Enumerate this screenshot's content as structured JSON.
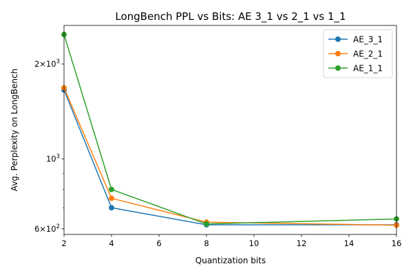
{
  "chart_data": {
    "type": "line",
    "title": "LongBench PPL vs Bits: AE 3_1 vs 2_1 vs 1_1",
    "xlabel": "Quantization bits",
    "ylabel": "Avg. Perplexity on LongBench",
    "xlim": [
      2,
      16
    ],
    "ylim": [
      576,
      2650
    ],
    "yscale": "log",
    "xticks": [
      2,
      4,
      6,
      8,
      10,
      12,
      14,
      16
    ],
    "yticks": [
      {
        "value": 600,
        "mantissa": "6",
        "exponent": "2"
      },
      {
        "value": 1000,
        "mantissa": "10",
        "exponent": "3"
      },
      {
        "value": 2000,
        "mantissa": "2",
        "exponent": "3"
      }
    ],
    "legend_position": "top-right",
    "x": [
      2,
      4,
      8,
      16
    ],
    "series": [
      {
        "name": "AE_3_1",
        "color": "#1f77b4",
        "values": [
          1655,
          700,
          618,
          618
        ]
      },
      {
        "name": "AE_2_1",
        "color": "#ff7f0e",
        "values": [
          1680,
          750,
          630,
          616
        ]
      },
      {
        "name": "AE_1_1",
        "color": "#2ca02c",
        "values": [
          2480,
          800,
          622,
          645
        ]
      }
    ]
  }
}
